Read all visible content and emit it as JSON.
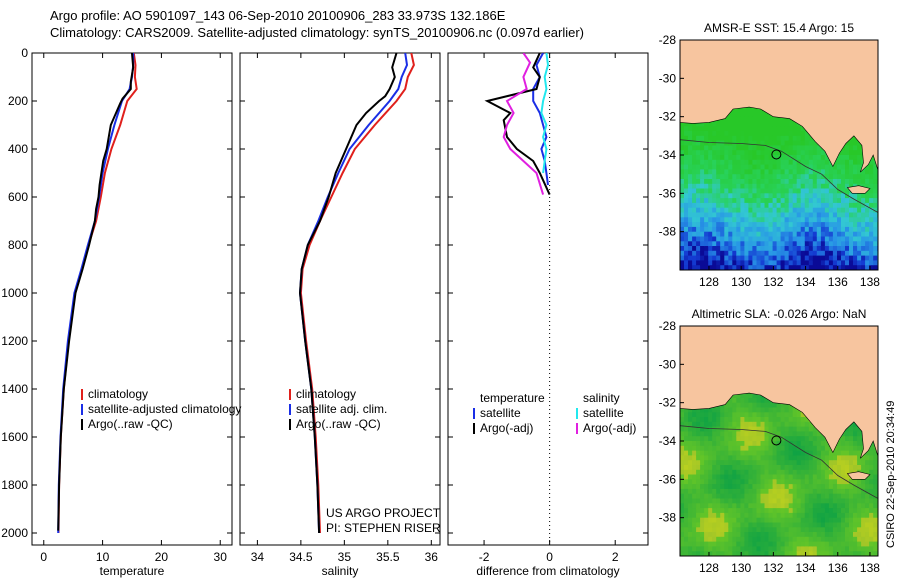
{
  "header": {
    "line1": "Argo profile: AO 5901097_143 06-Sep-2010 20100906_283 33.973S 132.186E",
    "line2": "Climatology: CARS2009. Satellite-adjusted climatology: synTS_20100906.nc (0.097d earlier)"
  },
  "colors": {
    "climatology": "#e0201c",
    "satellite": "#1a2ee6",
    "argo": "#000000",
    "sal_satellite": "#22e8ee",
    "sal_argo": "#e020e0",
    "land": "#f7c59f"
  },
  "chart_data": [
    {
      "type": "line",
      "xlabel": "temperature",
      "ylim": [
        2050,
        0
      ],
      "xlim": [
        -2,
        32
      ],
      "xticks": [
        "0",
        "10",
        "20",
        "30"
      ],
      "yticks": [
        "0",
        "200",
        "400",
        "600",
        "800",
        "1000",
        "1200",
        "1400",
        "1600",
        "1800",
        "2000"
      ],
      "legend": [
        "climatology",
        "satellite-adjusted climatology",
        "Argo(..raw -QC)"
      ],
      "series": [
        {
          "name": "climatology",
          "x": [
            15.3,
            15.6,
            15.5,
            15.8,
            14.2,
            13.0,
            11.5,
            10.4,
            9.7,
            8.9,
            7.6,
            6.5,
            5.3,
            4.2,
            3.4,
            2.9,
            2.6,
            2.5
          ],
          "y": [
            0,
            50,
            100,
            150,
            200,
            300,
            400,
            500,
            600,
            700,
            800,
            900,
            1000,
            1200,
            1400,
            1600,
            1800,
            2000
          ]
        },
        {
          "name": "satellite-adjusted climatology",
          "x": [
            15.2,
            15.2,
            15.0,
            14.6,
            13.3,
            12.0,
            10.9,
            10.0,
            9.4,
            8.7,
            7.5,
            6.4,
            5.2,
            4.1,
            3.3,
            2.85,
            2.55,
            2.45
          ],
          "y": [
            0,
            50,
            100,
            150,
            200,
            300,
            400,
            500,
            600,
            700,
            800,
            900,
            1000,
            1200,
            1400,
            1600,
            1800,
            2000
          ]
        },
        {
          "name": "Argo(..raw -QC)",
          "x": [
            15.0,
            15.2,
            14.8,
            14.8,
            13.4,
            13.0,
            11.4,
            10.7,
            10.1,
            9.5,
            9.3,
            8.9,
            8.7,
            7.7,
            6.6,
            5.4,
            4.3,
            3.4,
            2.9,
            2.6,
            2.45
          ],
          "y": [
            0,
            60,
            120,
            150,
            190,
            210,
            300,
            400,
            450,
            550,
            600,
            650,
            700,
            800,
            900,
            1000,
            1200,
            1400,
            1600,
            1800,
            1990
          ]
        }
      ],
      "annotations": []
    },
    {
      "type": "line",
      "xlabel": "salinity",
      "ylim": [
        2050,
        0
      ],
      "xlim": [
        33.8,
        36.1
      ],
      "xticks": [
        "34",
        "34.5",
        "35",
        "35.5",
        "36"
      ],
      "legend": [
        "climatology",
        "satellite adj. clim.",
        "Argo(..raw -QC)"
      ],
      "series": [
        {
          "name": "climatology",
          "x": [
            35.77,
            35.8,
            35.73,
            35.7,
            35.6,
            35.35,
            35.12,
            34.98,
            34.85,
            34.72,
            34.6,
            34.52,
            34.5,
            34.56,
            34.63,
            34.67,
            34.7,
            34.72
          ],
          "y": [
            0,
            50,
            100,
            150,
            200,
            300,
            400,
            500,
            600,
            700,
            800,
            900,
            1000,
            1200,
            1400,
            1600,
            1800,
            2000
          ]
        },
        {
          "name": "satellite adj. clim.",
          "x": [
            35.7,
            35.72,
            35.66,
            35.62,
            35.52,
            35.28,
            35.06,
            34.93,
            34.81,
            34.7,
            34.58,
            34.51,
            34.49,
            34.55,
            34.62,
            34.66,
            34.69,
            34.71
          ],
          "y": [
            0,
            50,
            100,
            150,
            200,
            300,
            400,
            500,
            600,
            700,
            800,
            900,
            1000,
            1200,
            1400,
            1600,
            1800,
            2000
          ]
        },
        {
          "name": "Argo(..raw -QC)",
          "x": [
            35.6,
            35.55,
            35.58,
            35.52,
            35.47,
            35.4,
            35.25,
            35.14,
            35.02,
            34.9,
            34.82,
            34.72,
            34.58,
            34.51,
            34.49,
            34.55,
            34.62,
            34.66,
            34.69,
            34.71
          ],
          "y": [
            0,
            60,
            100,
            150,
            180,
            200,
            250,
            300,
            400,
            500,
            600,
            700,
            800,
            900,
            1000,
            1200,
            1400,
            1600,
            1800,
            2000
          ]
        }
      ],
      "annotations": [
        "US ARGO PROJECT",
        "PI: STEPHEN RISER"
      ]
    },
    {
      "type": "line",
      "xlabel": "difference from climatology",
      "ylim": [
        2050,
        0
      ],
      "xlim": [
        -3.1,
        3.0
      ],
      "xticks": [
        "-2",
        "0",
        "2"
      ],
      "legend_groups": [
        {
          "title": "temperature",
          "items": [
            "satellite",
            "Argo(-adj)"
          ]
        },
        {
          "title": "salinity",
          "items": [
            "satellite",
            "Argo(-adj)"
          ]
        }
      ],
      "series": [
        {
          "name": "temperature satellite",
          "x": [
            -0.2,
            -0.4,
            -0.3,
            -0.5,
            -0.5,
            -0.3,
            -0.2,
            -0.1,
            -0.25,
            -0.15,
            -0.1,
            -0.05
          ],
          "y": [
            0,
            50,
            100,
            150,
            200,
            250,
            300,
            350,
            400,
            450,
            500,
            550
          ]
        },
        {
          "name": "temperature Argo(-adj)",
          "x": [
            -0.3,
            -0.5,
            -0.3,
            -0.4,
            -1.9,
            -1.2,
            -1.4,
            -1.3,
            -1.0,
            -0.5,
            -0.3,
            0.0
          ],
          "y": [
            0,
            60,
            100,
            150,
            200,
            250,
            280,
            350,
            400,
            450,
            500,
            590
          ]
        },
        {
          "name": "salinity satellite",
          "x": [
            -0.1,
            -0.05,
            -0.15,
            -0.1,
            -0.2,
            -0.25,
            -0.1,
            -0.2,
            -0.1,
            -0.15,
            -0.2
          ],
          "y": [
            0,
            50,
            100,
            150,
            200,
            250,
            300,
            350,
            400,
            450,
            500
          ]
        },
        {
          "name": "salinity Argo(-adj)",
          "x": [
            -0.8,
            -0.6,
            -0.8,
            -0.7,
            -1.3,
            -1.1,
            -1.3,
            -1.4,
            -1.2,
            -0.8,
            -0.4,
            -0.2
          ],
          "y": [
            0,
            40,
            100,
            150,
            200,
            250,
            300,
            350,
            400,
            450,
            500,
            590
          ]
        }
      ],
      "reference_line": "dotted at 0"
    }
  ],
  "maps": [
    {
      "title": "AMSR-E SST: 15.4 Argo: 15",
      "xticks": [
        "128",
        "130",
        "132",
        "134",
        "136",
        "138"
      ],
      "yticks": [
        "-28",
        "-30",
        "-32",
        "-34",
        "-36",
        "-38"
      ],
      "marker": "circle"
    },
    {
      "title": "Altimetric SLA: -0.026 Argo: NaN",
      "xticks": [
        "128",
        "130",
        "132",
        "134",
        "136",
        "138"
      ],
      "yticks": [
        "-28",
        "-30",
        "-32",
        "-34",
        "-36",
        "-38"
      ],
      "marker": "circle"
    }
  ],
  "footer": {
    "timestamp": "CSIRO 22-Sep-2010 20:34:49"
  }
}
